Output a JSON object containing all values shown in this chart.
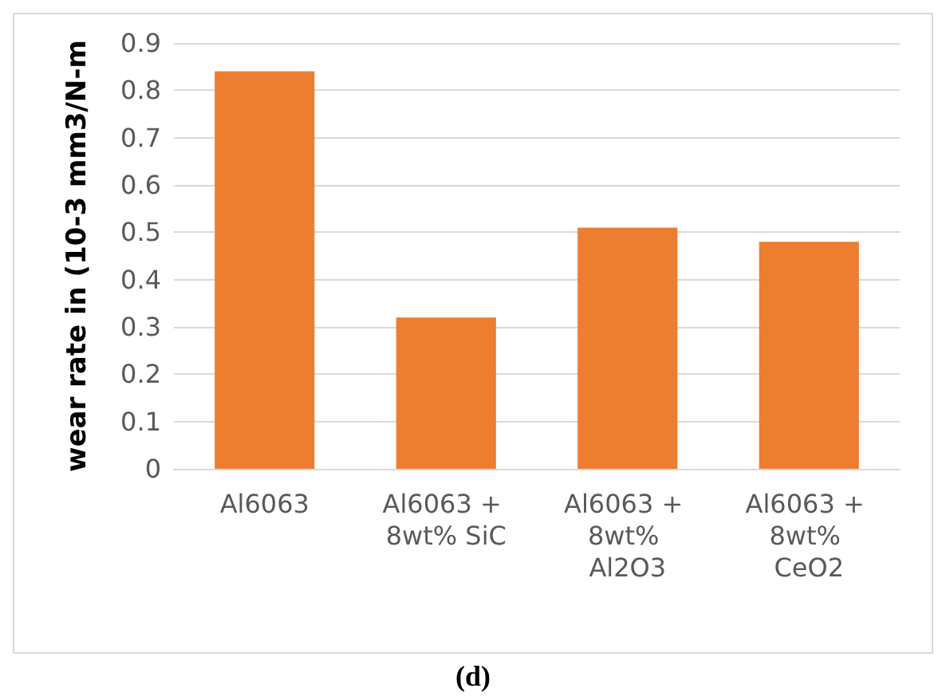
{
  "chart_data": {
    "type": "bar",
    "ylabel": "wear rate in (10-3 mm3/N-m",
    "categories": [
      "Al6063",
      "Al6063 + 8wt% SiC",
      "Al6063 + 8wt% Al2O3",
      "Al6063 + 8wt% CeO2"
    ],
    "values": [
      0.84,
      0.32,
      0.51,
      0.48
    ],
    "color": "#ed7d31",
    "ylim": [
      0,
      0.9
    ],
    "yticks": [
      0,
      0.1,
      0.2,
      0.3,
      0.4,
      0.5,
      0.6,
      0.7,
      0.8,
      0.9
    ],
    "grid": "y",
    "annotations": [
      "(d)"
    ]
  }
}
